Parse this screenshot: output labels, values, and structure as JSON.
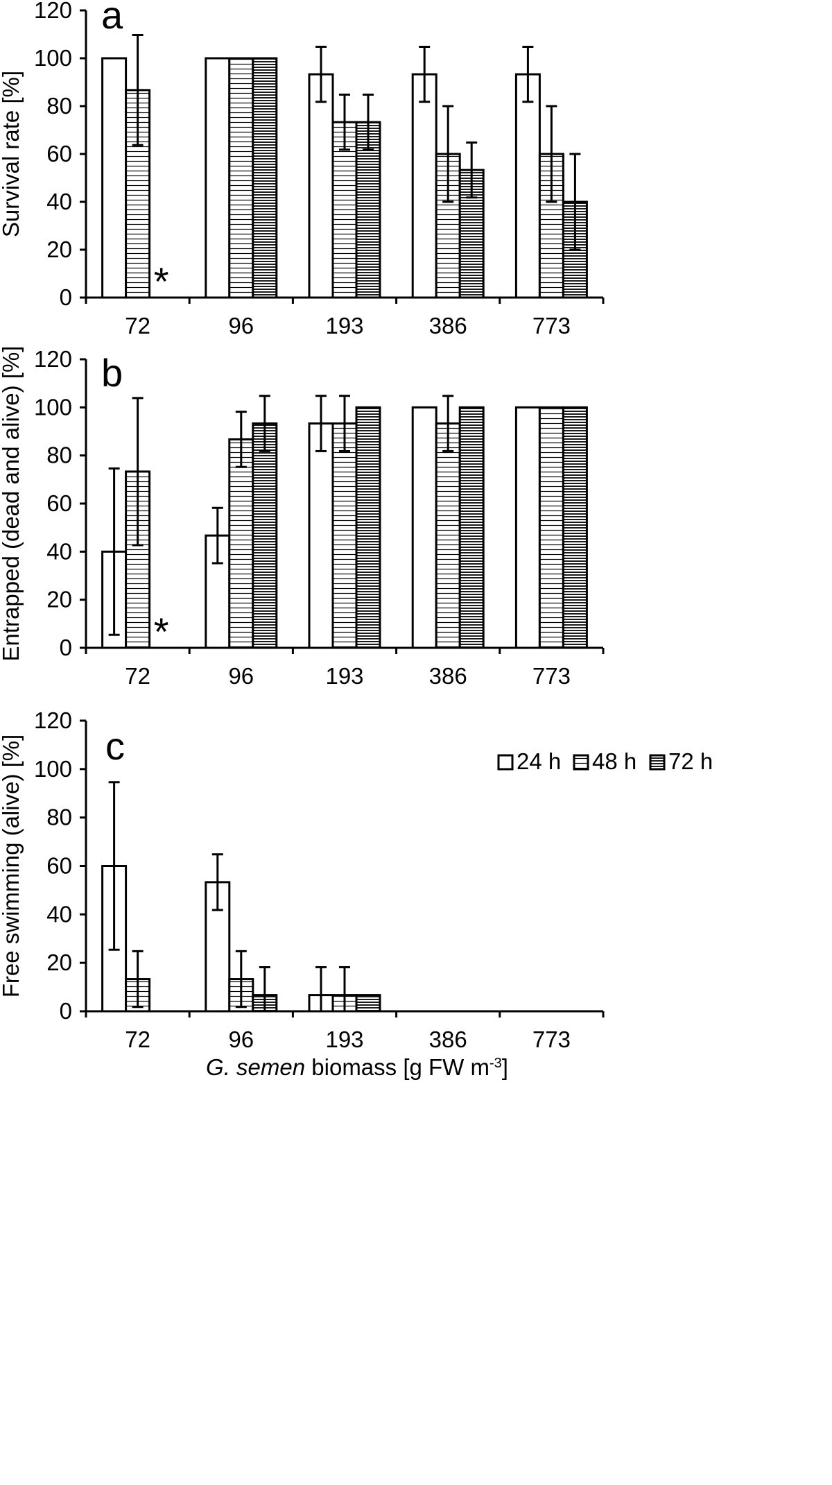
{
  "chart_data": [
    {
      "type": "bar",
      "panel": "a",
      "categories": [
        "72",
        "96",
        "193",
        "386",
        "773"
      ],
      "ylabel": "Survival rate [%]",
      "ylim": [
        0,
        120
      ],
      "yticks": [
        0,
        20,
        40,
        60,
        80,
        100,
        120
      ],
      "series": [
        {
          "name": "24 h",
          "values": [
            100,
            100,
            93.3,
            93.3,
            93.3
          ],
          "errors": [
            0,
            0,
            11.5,
            11.5,
            11.5
          ]
        },
        {
          "name": "48 h",
          "values": [
            86.7,
            100,
            73.3,
            60,
            60
          ],
          "errors": [
            23,
            0,
            11.5,
            20,
            20
          ]
        },
        {
          "name": "72 h",
          "values": [
            null,
            100,
            73.3,
            53.3,
            40
          ],
          "errors": [
            0,
            0,
            11.5,
            11.5,
            20
          ]
        }
      ],
      "annotations": [
        {
          "category": "72",
          "series": "72 h",
          "text": "*"
        }
      ]
    },
    {
      "type": "bar",
      "panel": "b",
      "categories": [
        "72",
        "96",
        "193",
        "386",
        "773"
      ],
      "ylabel": "Entrapped (dead and alive) [%]",
      "ylim": [
        0,
        120
      ],
      "yticks": [
        0,
        20,
        40,
        60,
        80,
        100,
        120
      ],
      "series": [
        {
          "name": "24 h",
          "values": [
            40,
            46.7,
            93.3,
            100,
            100
          ],
          "errors": [
            34.6,
            11.5,
            11.5,
            0,
            0
          ]
        },
        {
          "name": "48 h",
          "values": [
            73.3,
            86.7,
            93.3,
            93.3,
            100
          ],
          "errors": [
            30.6,
            11.5,
            11.5,
            11.5,
            0
          ]
        },
        {
          "name": "72 h",
          "values": [
            null,
            93.3,
            100,
            100,
            100
          ],
          "errors": [
            0,
            11.5,
            0,
            0,
            0
          ]
        }
      ],
      "annotations": [
        {
          "category": "72",
          "series": "72 h",
          "text": "*"
        }
      ]
    },
    {
      "type": "bar",
      "panel": "c",
      "categories": [
        "72",
        "96",
        "193",
        "386",
        "773"
      ],
      "ylabel": "Free swimming (alive) [%]",
      "xlabel": {
        "italic": "G. semen",
        "rest": " biomass [g FW m",
        "sup": "-3",
        "end": "]"
      },
      "ylim": [
        0,
        120
      ],
      "yticks": [
        0,
        20,
        40,
        60,
        80,
        100,
        120
      ],
      "legend": {
        "position": "top-right",
        "entries": [
          "24 h",
          "48 h",
          "72 h"
        ]
      },
      "series": [
        {
          "name": "24 h",
          "values": [
            60,
            53.3,
            6.7,
            0,
            0
          ],
          "errors": [
            34.6,
            11.5,
            11.5,
            0,
            0
          ]
        },
        {
          "name": "48 h",
          "values": [
            13.3,
            13.3,
            6.7,
            0,
            0
          ],
          "errors": [
            11.5,
            11.5,
            11.5,
            0,
            0
          ]
        },
        {
          "name": "72 h",
          "values": [
            0,
            6.7,
            6.7,
            0,
            0
          ],
          "errors": [
            0,
            11.5,
            0,
            0,
            0
          ]
        }
      ]
    }
  ]
}
